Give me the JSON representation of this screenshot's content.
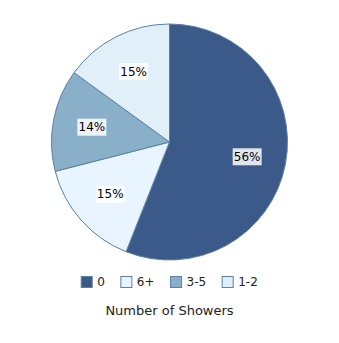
{
  "chart_data": {
    "type": "pie",
    "xlabel": "Number of Showers",
    "categories": [
      "0",
      "6+",
      "3-5",
      "1-2"
    ],
    "values": [
      56,
      15,
      14,
      15
    ],
    "value_labels": [
      "56%",
      "15%",
      "14%",
      "15%"
    ],
    "colors": [
      "#3B5A8A",
      "#E8F4FF",
      "#8AAFC8",
      "#E0EFF8"
    ],
    "data_labels": true,
    "legend": "bottom"
  }
}
